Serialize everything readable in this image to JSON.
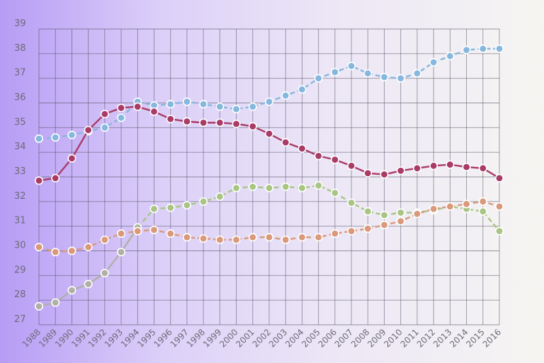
{
  "chart_data": {
    "type": "line",
    "title": "",
    "xlabel": "",
    "ylabel": "",
    "x": [
      "1988",
      "1989",
      "1990",
      "1991",
      "1992",
      "1993",
      "1994",
      "1995",
      "1996",
      "1997",
      "1998",
      "1999",
      "2000",
      "2001",
      "2002",
      "2003",
      "2004",
      "2005",
      "2006",
      "2007",
      "2008",
      "2009",
      "2010",
      "2011",
      "2012",
      "2013",
      "2014",
      "2015",
      "2016"
    ],
    "y_ticks": [
      "27",
      "28",
      "29",
      "30",
      "31",
      "32",
      "33",
      "34",
      "35",
      "36",
      "37",
      "38",
      "39"
    ],
    "ylim": [
      27,
      39
    ],
    "grid": true,
    "legend": "none",
    "series": [
      {
        "color": "#86b8df",
        "dash": true,
        "values": [
          34.55,
          34.6,
          34.7,
          34.85,
          35.0,
          35.4,
          36.05,
          35.9,
          35.95,
          36.05,
          35.95,
          35.85,
          35.75,
          35.85,
          36.05,
          36.3,
          36.55,
          37.0,
          37.25,
          37.5,
          37.2,
          37.05,
          37.0,
          37.2,
          37.65,
          37.9,
          38.15,
          38.2,
          38.2
        ]
      },
      {
        "color": "#a93b67",
        "dash": false,
        "values": [
          32.85,
          32.95,
          33.75,
          34.9,
          35.55,
          35.8,
          35.85,
          35.65,
          35.35,
          35.25,
          35.2,
          35.2,
          35.15,
          35.05,
          34.75,
          34.4,
          34.15,
          33.85,
          33.7,
          33.45,
          33.15,
          33.1,
          33.25,
          33.35,
          33.45,
          33.5,
          33.4,
          33.35,
          32.95
        ]
      },
      {
        "color": "#a9c584",
        "dash": true,
        "values": [
          null,
          null,
          null,
          null,
          null,
          null,
          30.95,
          31.7,
          31.75,
          31.85,
          32.0,
          32.2,
          32.55,
          32.6,
          32.55,
          32.6,
          32.55,
          32.65,
          32.35,
          31.95,
          31.6,
          31.45,
          31.55,
          31.55,
          31.65,
          31.8,
          31.7,
          31.6,
          30.8
        ]
      },
      {
        "color": "#b0b0a6",
        "dash": false,
        "values": [
          27.75,
          27.9,
          28.4,
          28.65,
          29.1,
          29.95,
          30.95,
          null,
          null,
          null,
          null,
          null,
          null,
          null,
          null,
          null,
          null,
          null,
          null,
          null,
          null,
          null,
          null,
          null,
          null,
          null,
          null,
          null,
          null
        ]
      },
      {
        "color": "#d9997a",
        "dash": true,
        "values": [
          30.15,
          29.95,
          30.0,
          30.15,
          30.45,
          30.7,
          30.8,
          30.85,
          30.7,
          30.55,
          30.5,
          30.45,
          30.45,
          30.55,
          30.55,
          30.45,
          30.55,
          30.55,
          30.7,
          30.8,
          30.9,
          31.05,
          31.2,
          31.5,
          31.7,
          31.8,
          31.9,
          32.0,
          31.8
        ]
      }
    ]
  }
}
